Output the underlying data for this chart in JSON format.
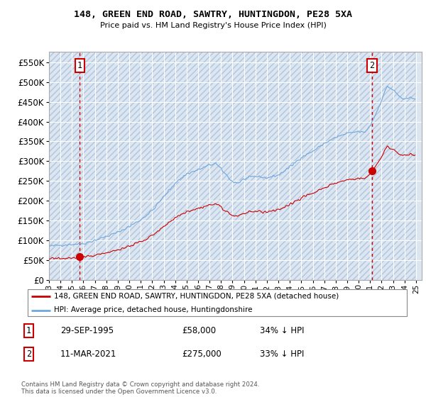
{
  "title": "148, GREEN END ROAD, SAWTRY, HUNTINGDON, PE28 5XA",
  "subtitle": "Price paid vs. HM Land Registry's House Price Index (HPI)",
  "background_color": "#ffffff",
  "plot_bg_color": "#dce6f1",
  "grid_color": "#ffffff",
  "hatch_color": "#c8d4e3",
  "ylim": [
    0,
    577000
  ],
  "yticks": [
    0,
    50000,
    100000,
    150000,
    200000,
    250000,
    300000,
    350000,
    400000,
    450000,
    500000,
    550000
  ],
  "sale1_date_idx": 33,
  "sale1_price": 58000,
  "sale2_date_idx": 340,
  "sale2_price": 275000,
  "legend_entry1": "148, GREEN END ROAD, SAWTRY, HUNTINGDON, PE28 5XA (detached house)",
  "legend_entry2": "HPI: Average price, detached house, Huntingdonshire",
  "table_row1": [
    "1",
    "29-SEP-1995",
    "£58,000",
    "34% ↓ HPI"
  ],
  "table_row2": [
    "2",
    "11-MAR-2021",
    "£275,000",
    "33% ↓ HPI"
  ],
  "footer": "Contains HM Land Registry data © Crown copyright and database right 2024.\nThis data is licensed under the Open Government Licence v3.0.",
  "hpi_color": "#6fa8dc",
  "price_color": "#cc0000",
  "marker_color": "#cc0000",
  "dashed_line_color": "#cc0000",
  "label_box_color": "#cc0000",
  "x_start_year": 1993,
  "x_end_year": 2025
}
